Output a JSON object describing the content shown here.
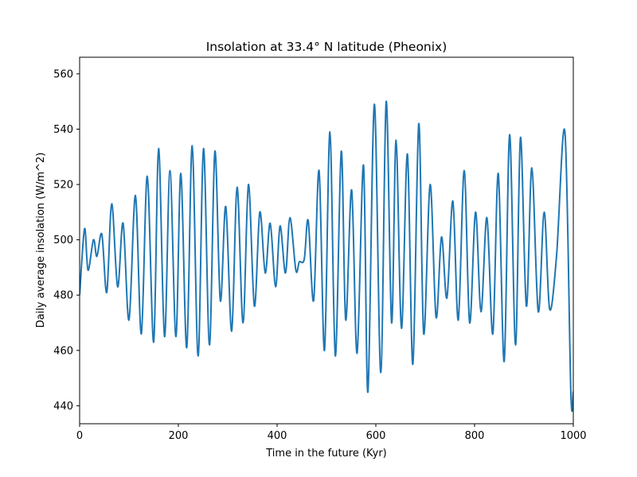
{
  "chart_data": {
    "type": "line",
    "title": "Insolation at 33.4° N latitude (Pheonix)",
    "xlabel": "Time in the future (Kyr)",
    "ylabel": "Daily average insolation (W/m^2)",
    "xlim": [
      0,
      1000
    ],
    "ylim": [
      433.5,
      566
    ],
    "xticks": [
      0,
      200,
      400,
      600,
      800,
      1000
    ],
    "yticks": [
      440,
      460,
      480,
      500,
      520,
      540,
      560
    ],
    "grid": false,
    "line_color": "#1f77b4",
    "series": [
      {
        "x": [
          0,
          10,
          17,
          28,
          35,
          45,
          55,
          65,
          77,
          88,
          100,
          113,
          125,
          137,
          150,
          160,
          172,
          183,
          195,
          205,
          217,
          228,
          240,
          251,
          263,
          274,
          285,
          296,
          308,
          319,
          331,
          342,
          354,
          365,
          376,
          386,
          397,
          406,
          417,
          426,
          438,
          445,
          455,
          463,
          474,
          485,
          496,
          507,
          518,
          530,
          539,
          551,
          562,
          575,
          584,
          597,
          610,
          621,
          632,
          641,
          652,
          664,
          675,
          687,
          697,
          710,
          722,
          733,
          744,
          756,
          767,
          779,
          790,
          802,
          813,
          825,
          837,
          848,
          860,
          871,
          883,
          893,
          905,
          916,
          929,
          941,
          952,
          966,
          983,
          995,
          1000
        ],
        "y": [
          480,
          504,
          489,
          500,
          494,
          502,
          481,
          513,
          483,
          506,
          471,
          516,
          466,
          523,
          463,
          533,
          465,
          525,
          465,
          524,
          461,
          534,
          458,
          533,
          462,
          532,
          478,
          512,
          467,
          519,
          470,
          520,
          476,
          510,
          488,
          506,
          483,
          505,
          488,
          508,
          489,
          492,
          493,
          507,
          478,
          525,
          460,
          539,
          458,
          532,
          471,
          518,
          459,
          527,
          445,
          549,
          452,
          550,
          470,
          536,
          468,
          531,
          455,
          542,
          466,
          520,
          472,
          501,
          479,
          514,
          471,
          525,
          470,
          510,
          474,
          508,
          466,
          524,
          456,
          538,
          462,
          537,
          476,
          526,
          474,
          510,
          475,
          494,
          539,
          445,
          445
        ]
      }
    ]
  }
}
